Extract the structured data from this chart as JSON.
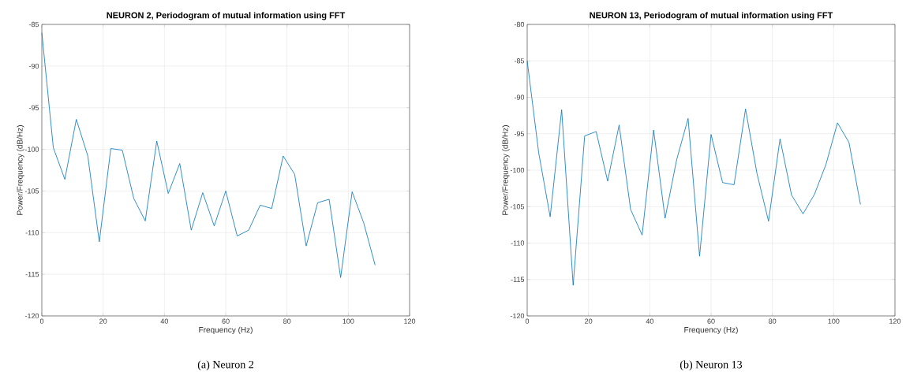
{
  "chart_data": [
    {
      "type": "line",
      "title": "NEURON 2, Periodogram of mutual information using FFT",
      "xlabel": "Frequency (Hz)",
      "ylabel": "Power/Frequency (dB/Hz)",
      "annotations": [
        "(a) Neuron 2"
      ],
      "x": [
        0,
        3.75,
        7.5,
        11.25,
        15,
        18.75,
        22.5,
        26.25,
        30,
        33.75,
        37.5,
        41.25,
        45,
        48.75,
        52.5,
        56.25,
        60,
        63.75,
        67.5,
        71.25,
        75,
        78.75,
        82.5,
        86.25,
        90,
        93.75,
        97.5,
        101.25,
        105,
        108.75
      ],
      "values": [
        -86,
        -99.8,
        -103.6,
        -96.4,
        -100.8,
        -111.1,
        -99.9,
        -100.1,
        -105.9,
        -108.6,
        -99.0,
        -105.3,
        -101.7,
        -109.7,
        -105.2,
        -109.2,
        -105.0,
        -110.4,
        -109.7,
        -106.7,
        -107.1,
        -100.8,
        -103.0,
        -111.6,
        -106.4,
        -106.0,
        -115.4,
        -105.1,
        -108.8,
        -113.9
      ],
      "color": "#0072bd",
      "xlim": [
        0,
        120
      ],
      "ylim": [
        -120,
        -85
      ],
      "xticks": [
        0,
        20,
        40,
        60,
        80,
        100,
        120
      ],
      "yticks": [
        -120,
        -115,
        -110,
        -105,
        -100,
        -95,
        -90,
        -85
      ],
      "grid": true
    },
    {
      "type": "line",
      "title": "NEURON 13, Periodogram of mutual information using FFT",
      "xlabel": "Frequency (Hz)",
      "ylabel": "Power/Frequency (dB/Hz)",
      "annotations": [
        "(b) Neuron 13"
      ],
      "x": [
        0,
        3.75,
        7.5,
        11.25,
        15,
        18.75,
        22.5,
        26.25,
        30,
        33.75,
        37.5,
        41.25,
        45,
        48.75,
        52.5,
        56.25,
        60,
        63.75,
        67.5,
        71.25,
        75,
        78.75,
        82.5,
        86.25,
        90,
        93.75,
        97.5,
        101.25,
        105,
        108.75
      ],
      "values": [
        -85,
        -97.6,
        -106.4,
        -91.7,
        -115.8,
        -95.3,
        -94.7,
        -101.5,
        -93.8,
        -105.4,
        -108.9,
        -94.5,
        -106.6,
        -98.6,
        -92.9,
        -111.8,
        -95.1,
        -101.7,
        -102.0,
        -91.6,
        -100.5,
        -107.0,
        -95.7,
        -103.4,
        -106.0,
        -103.3,
        -99.2,
        -93.5,
        -96.2,
        -104.7
      ],
      "color": "#0072bd",
      "xlim": [
        0,
        120
      ],
      "ylim": [
        -120,
        -80
      ],
      "xticks": [
        0,
        20,
        40,
        60,
        80,
        100,
        120
      ],
      "yticks": [
        -120,
        -115,
        -110,
        -105,
        -100,
        -95,
        -90,
        -85,
        -80
      ],
      "grid": true
    }
  ]
}
